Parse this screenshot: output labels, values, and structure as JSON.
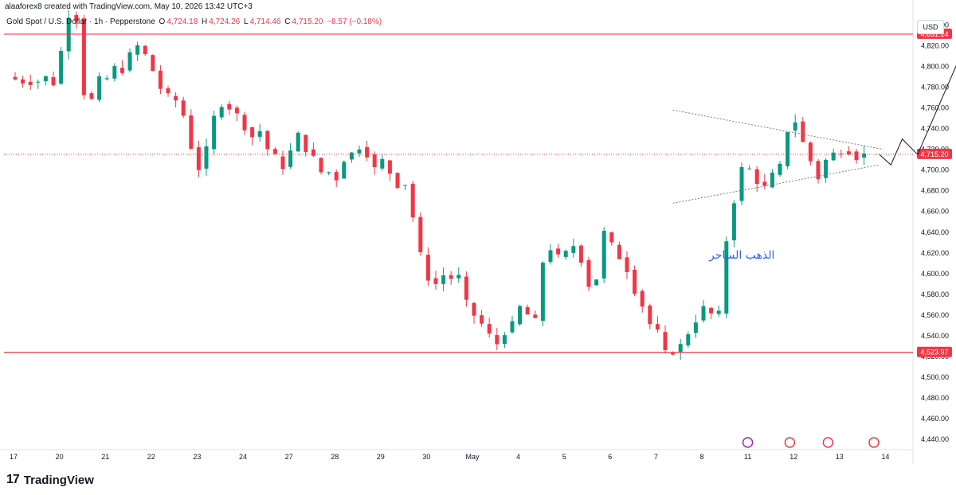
{
  "header": {
    "credit": "alaaforex8 created with TradingView.com, May 10, 2026 13:42 UTC+3",
    "symbol": "Gold Spot / U.S. Dollar · 1h · Pepperstone",
    "open_label": "O",
    "open": "4,724.18",
    "high_label": "H",
    "high": "4,724.26",
    "low_label": "L",
    "low": "4,714.46",
    "close_label": "C",
    "close": "4,715.20",
    "change": "−8.57 (−0.18%)"
  },
  "currency": "USD",
  "annotation_text": "الذهب الساحر",
  "brand": {
    "logo": "17",
    "name": "TradingView"
  },
  "colors": {
    "up": "#089981",
    "down": "#f23645",
    "level": "#f23645",
    "projection": "#131722"
  },
  "chart_data": {
    "type": "candlestick",
    "ylim": [
      4430,
      4855
    ],
    "y_ticks": [
      4440,
      4460,
      4480,
      4500,
      4520,
      4540,
      4560,
      4580,
      4600,
      4620,
      4640,
      4660,
      4680,
      4700,
      4720,
      4740,
      4760,
      4780,
      4800,
      4820,
      4840
    ],
    "x_ticks": [
      {
        "label": "17",
        "bar": 0
      },
      {
        "label": "20",
        "bar": 6
      },
      {
        "label": "21",
        "bar": 12
      },
      {
        "label": "22",
        "bar": 18
      },
      {
        "label": "23",
        "bar": 24
      },
      {
        "label": "24",
        "bar": 30
      },
      {
        "label": "27",
        "bar": 36
      },
      {
        "label": "28",
        "bar": 42
      },
      {
        "label": "29",
        "bar": 48
      },
      {
        "label": "30",
        "bar": 54
      },
      {
        "label": "May",
        "bar": 60
      },
      {
        "label": "4",
        "bar": 66
      },
      {
        "label": "5",
        "bar": 72
      },
      {
        "label": "6",
        "bar": 78
      },
      {
        "label": "7",
        "bar": 84
      },
      {
        "label": "8",
        "bar": 90
      },
      {
        "label": "11",
        "bar": 96
      },
      {
        "label": "12",
        "bar": 102
      },
      {
        "label": "13",
        "bar": 108
      },
      {
        "label": "14",
        "bar": 114
      }
    ],
    "levels": [
      {
        "value": 4831.24,
        "label": "4,831.24"
      },
      {
        "value": 4523.97,
        "label": "4,523.97"
      }
    ],
    "last_price": {
      "value": 4715.2,
      "label": "4,715.20"
    },
    "path_points": [
      4790,
      4788,
      4786,
      4784,
      4785,
      4786,
      4790,
      4780,
      4795,
      4840,
      4855,
      4845,
      4775,
      4760,
      4790,
      4785,
      4790,
      4800,
      4795,
      4810,
      4815,
      4825,
      4805,
      4795,
      4780,
      4770,
      4775,
      4760,
      4750,
      4720,
      4700,
      4710,
      4740,
      4760,
      4765,
      4760,
      4755,
      4745,
      4735,
      4730,
      4740,
      4720,
      4715,
      4705,
      4700,
      4730,
      4735,
      4720,
      4715,
      4700,
      4695,
      4700,
      4690,
      4710,
      4715,
      4720,
      4725,
      4710,
      4700,
      4710,
      4700,
      4690,
      4680,
      4690,
      4650,
      4620,
      4600,
      4585,
      4595,
      4600,
      4595,
      4600,
      4575,
      4565,
      4555,
      4550,
      4540,
      4530,
      4545,
      4540,
      4560,
      4570,
      4560,
      4545,
      4600,
      4630,
      4620,
      4615,
      4620,
      4630,
      4615,
      4610,
      4575,
      4600,
      4640,
      4630,
      4620,
      4610,
      4600,
      4580,
      4570,
      4550,
      4555,
      4530,
      4520,
      4525,
      4530,
      4540,
      4550,
      4560,
      4570,
      4560,
      4555,
      4620,
      4660,
      4680,
      4710,
      4700,
      4690,
      4680,
      4690,
      4700,
      4705,
      4740,
      4750,
      4730,
      4720,
      4700,
      4690,
      4710,
      4715,
      4720,
      4715,
      4720,
      4710,
      4715
    ],
    "bars_in_path": 112,
    "projection": [
      {
        "bar": 113,
        "value": 4715
      },
      {
        "bar": 114.5,
        "value": 4705
      },
      {
        "bar": 116,
        "value": 4730
      },
      {
        "bar": 118,
        "value": 4715
      },
      {
        "bar": 125,
        "value": 4834
      }
    ],
    "triangle": {
      "upper": [
        {
          "bar": 86,
          "value": 4758
        },
        {
          "bar": 113.5,
          "value": 4720
        }
      ],
      "lower": [
        {
          "bar": 86,
          "value": 4668
        },
        {
          "bar": 113,
          "value": 4705
        }
      ]
    }
  }
}
